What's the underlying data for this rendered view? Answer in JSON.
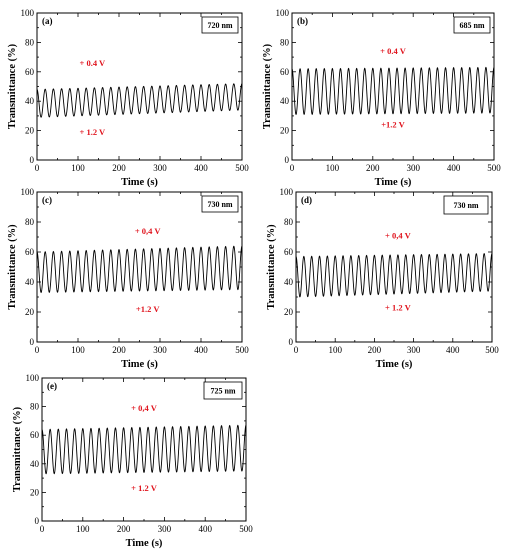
{
  "colors": {
    "annotation": "#e0141e",
    "curve": "#000000"
  },
  "chart_data": [
    {
      "type": "line",
      "panel": "(a)",
      "wavelength": "720 nm",
      "xlabel": "Time (s)",
      "ylabel": "Transmittance (%)",
      "xlim": [
        0,
        500
      ],
      "ylim": [
        0,
        100
      ],
      "xticks": [
        "0",
        "100",
        "200",
        "300",
        "400",
        "500"
      ],
      "yticks": [
        "0",
        "20",
        "40",
        "60",
        "80",
        "100"
      ],
      "cycles": 25,
      "period_s": 20,
      "series": [
        {
          "x": [
            0,
            500
          ],
          "max": [
            48,
            52
          ],
          "min": [
            29,
            34
          ]
        }
      ],
      "annotations": [
        {
          "text": "+ 0.4 V",
          "x": 135,
          "y": 64
        },
        {
          "text": "+ 1.2 V",
          "x": 135,
          "y": 17
        }
      ]
    },
    {
      "type": "line",
      "panel": "(b)",
      "wavelength": "685 nm",
      "xlabel": "Time (s)",
      "ylabel": "Transmittance (%)",
      "xlim": [
        0,
        500
      ],
      "ylim": [
        0,
        100
      ],
      "xticks": [
        "0",
        "100",
        "200",
        "300",
        "400",
        "500"
      ],
      "yticks": [
        "0",
        "20",
        "40",
        "60",
        "80",
        "100"
      ],
      "cycles": 25,
      "period_s": 20,
      "series": [
        {
          "x": [
            0,
            500
          ],
          "max": [
            62,
            63
          ],
          "min": [
            31,
            32
          ]
        }
      ],
      "annotations": [
        {
          "text": "+ 0.4 V",
          "x": 250,
          "y": 72
        },
        {
          "text": "+1.2 V",
          "x": 250,
          "y": 22
        }
      ]
    },
    {
      "type": "line",
      "panel": "(c)",
      "wavelength": "730 nm",
      "xlabel": "Time (s)",
      "ylabel": "Transmittance (%)",
      "xlim": [
        0,
        500
      ],
      "ylim": [
        0,
        100
      ],
      "xticks": [
        "0",
        "100",
        "200",
        "300",
        "400",
        "500"
      ],
      "yticks": [
        "0",
        "20",
        "40",
        "60",
        "80",
        "100"
      ],
      "cycles": 25,
      "period_s": 20,
      "series": [
        {
          "x": [
            0,
            500
          ],
          "max": [
            60,
            64
          ],
          "min": [
            33,
            35
          ]
        }
      ],
      "annotations": [
        {
          "text": "+ 0,4 V",
          "x": 270,
          "y": 72
        },
        {
          "text": "+1.2 V",
          "x": 270,
          "y": 20
        }
      ]
    },
    {
      "type": "line",
      "panel": "(d)",
      "wavelength": "730 nm",
      "xlabel": "Time (s)",
      "ylabel": "Transmittance (%)",
      "xlim": [
        0,
        500
      ],
      "ylim": [
        0,
        100
      ],
      "xticks": [
        "0",
        "100",
        "200",
        "300",
        "400",
        "500"
      ],
      "yticks": [
        "0",
        "20",
        "40",
        "60",
        "80",
        "100"
      ],
      "cycles": 25,
      "period_s": 20,
      "series": [
        {
          "x": [
            0,
            500
          ],
          "max": [
            57,
            59
          ],
          "min": [
            30,
            34
          ]
        }
      ],
      "annotations": [
        {
          "text": "+ 0,4 V",
          "x": 260,
          "y": 69
        },
        {
          "text": "+ 1.2 V",
          "x": 260,
          "y": 21
        }
      ]
    },
    {
      "type": "line",
      "panel": "(e)",
      "wavelength": "725 nm",
      "xlabel": "Time (s)",
      "ylabel": "Transmittance (%)",
      "xlim": [
        0,
        500
      ],
      "ylim": [
        0,
        100
      ],
      "xticks": [
        "0",
        "100",
        "200",
        "300",
        "400",
        "500"
      ],
      "yticks": [
        "0",
        "20",
        "40",
        "60",
        "80",
        "100"
      ],
      "cycles": 25,
      "period_s": 20,
      "series": [
        {
          "x": [
            0,
            500
          ],
          "max": [
            64,
            67
          ],
          "min": [
            33,
            35
          ]
        }
      ],
      "annotations": [
        {
          "text": "+ 0,4 V",
          "x": 250,
          "y": 77
        },
        {
          "text": "+ 1.2 V",
          "x": 250,
          "y": 21
        }
      ]
    }
  ]
}
